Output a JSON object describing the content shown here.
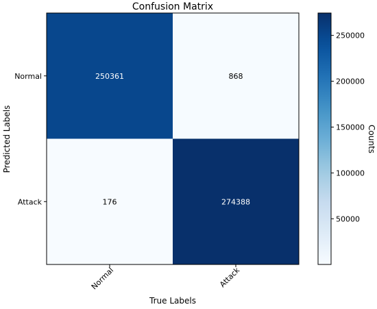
{
  "chart_data": {
    "type": "heatmap",
    "title": "Confusion Matrix",
    "xlabel": "True Labels",
    "ylabel": "Predicted Labels",
    "x_categories": [
      "Normal",
      "Attack"
    ],
    "y_categories": [
      "Normal",
      "Attack"
    ],
    "values": [
      [
        250361,
        868
      ],
      [
        176,
        274388
      ]
    ],
    "colormap": "Blues",
    "colorbar": {
      "label": "Counts",
      "min": 176,
      "max": 274388,
      "ticks": [
        50000,
        100000,
        150000,
        200000,
        250000
      ],
      "tick_labels": [
        "50000",
        "100000",
        "150000",
        "200000",
        "250000"
      ]
    },
    "grid": false,
    "xtick_rotation": 45
  }
}
